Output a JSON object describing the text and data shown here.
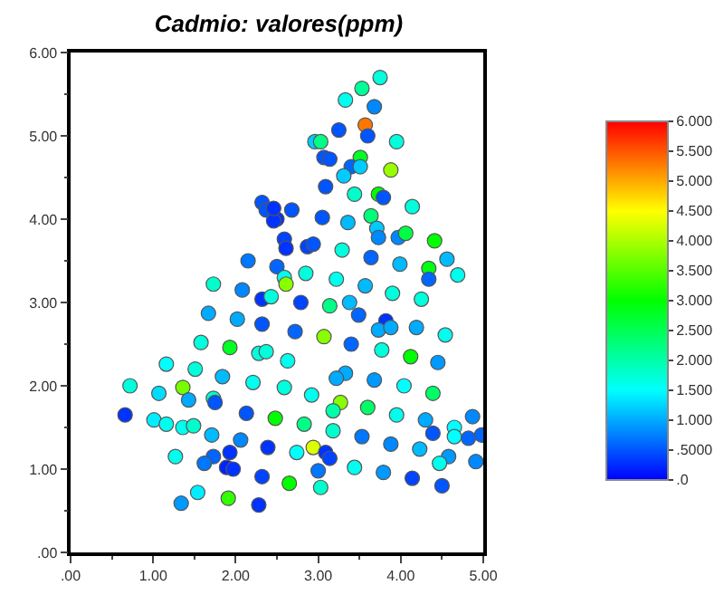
{
  "chart_data": {
    "type": "scatter",
    "title": "Cadmio: valores(ppm)",
    "marker": "circle",
    "legend": false,
    "xlim": [
      0,
      5
    ],
    "ylim": [
      0,
      6
    ],
    "xticks": [
      {
        "value": 0,
        "label": ".00"
      },
      {
        "value": 1,
        "label": "1.00"
      },
      {
        "value": 2,
        "label": "2.00"
      },
      {
        "value": 3,
        "label": "3.00"
      },
      {
        "value": 4,
        "label": "4.00"
      },
      {
        "value": 5,
        "label": "5.00"
      }
    ],
    "yticks": [
      {
        "value": 0,
        "label": ".00"
      },
      {
        "value": 1,
        "label": "1.00"
      },
      {
        "value": 2,
        "label": "2.00"
      },
      {
        "value": 3,
        "label": "3.00"
      },
      {
        "value": 4,
        "label": "4.00"
      },
      {
        "value": 5,
        "label": "5.00"
      },
      {
        "value": 6,
        "label": "6.00"
      }
    ],
    "clim": [
      0,
      6
    ],
    "cticks": [
      {
        "value": 0,
        "label": ".0"
      },
      {
        "value": 0.5,
        "label": ".5000"
      },
      {
        "value": 1,
        "label": "1.000"
      },
      {
        "value": 1.5,
        "label": "1.500"
      },
      {
        "value": 2,
        "label": "2.000"
      },
      {
        "value": 2.5,
        "label": "2.500"
      },
      {
        "value": 3,
        "label": "3.000"
      },
      {
        "value": 3.5,
        "label": "3.500"
      },
      {
        "value": 4,
        "label": "4.000"
      },
      {
        "value": 4.5,
        "label": "4.500"
      },
      {
        "value": 5,
        "label": "5.000"
      },
      {
        "value": 5.5,
        "label": "5.500"
      },
      {
        "value": 6,
        "label": "6.000"
      }
    ],
    "x": [
      2.32,
      2.37,
      2.5,
      2.46,
      2.59,
      2.61,
      2.15,
      2.5,
      2.59,
      2.61,
      1.73,
      2.08,
      2.32,
      2.43,
      3.75,
      3.53,
      3.33,
      3.68,
      3.57,
      3.6,
      3.25,
      2.96,
      3.03,
      3.95,
      3.07,
      3.14,
      3.51,
      3.4,
      3.51,
      3.31,
      3.88,
      3.09,
      3.44,
      3.73,
      3.79,
      4.14,
      2.68,
      2.46,
      3.05,
      3.36,
      3.64,
      3.71,
      3.73,
      3.97,
      4.06,
      4.41,
      2.87,
      2.94,
      3.29,
      3.64,
      4.56,
      3.99,
      2.85,
      3.22,
      3.57,
      4.34,
      4.34,
      4.69,
      3.9,
      4.25,
      3.38,
      2.79,
      3.14,
      1.67,
      2.02,
      2.32,
      1.58,
      1.93,
      2.28,
      2.37,
      1.16,
      1.51,
      1.84,
      2.21,
      0.72,
      1.36,
      1.07,
      1.43,
      1.73,
      1.75,
      2.59,
      0.66,
      1.01,
      1.16,
      1.36,
      1.49,
      2.13,
      2.48,
      1.71,
      2.06,
      2.39,
      1.93,
      1.27,
      1.73,
      1.62,
      1.89,
      1.97,
      2.32,
      1.54,
      1.34,
      1.91,
      2.28,
      2.65,
      3.49,
      3.82,
      3.73,
      3.88,
      4.19,
      4.54,
      2.72,
      3.07,
      3.4,
      3.77,
      4.12,
      4.45,
      2.63,
      3.33,
      3.22,
      3.68,
      4.04,
      4.39,
      2.92,
      3.27,
      3.18,
      3.6,
      3.95,
      2.83,
      3.18,
      4.3,
      4.39,
      4.65,
      4.65,
      4.87,
      4.82,
      4.98,
      3.53,
      3.88,
      4.23,
      2.94,
      3.09,
      3.14,
      2.74,
      4.58,
      4.47,
      4.91,
      3.0,
      3.44,
      3.79,
      4.14,
      4.5,
      3.03
    ],
    "values": [
      4.2,
      4.11,
      4.0,
      3.98,
      3.76,
      3.65,
      3.5,
      3.43,
      3.3,
      3.22,
      3.22,
      3.15,
      3.04,
      3.07,
      5.7,
      5.57,
      5.43,
      5.35,
      5.13,
      5.0,
      5.07,
      4.93,
      4.93,
      4.93,
      4.74,
      4.72,
      4.74,
      4.63,
      4.63,
      4.52,
      4.59,
      4.39,
      4.3,
      4.3,
      4.26,
      4.15,
      4.11,
      4.13,
      4.02,
      3.96,
      4.04,
      3.89,
      3.78,
      3.78,
      3.83,
      3.74,
      3.67,
      3.7,
      3.63,
      3.54,
      3.52,
      3.46,
      3.35,
      3.28,
      3.2,
      3.41,
      3.28,
      3.33,
      3.11,
      3.04,
      3.0,
      3.0,
      2.96,
      2.87,
      2.8,
      2.74,
      2.52,
      2.46,
      2.39,
      2.41,
      2.26,
      2.2,
      2.11,
      2.04,
      2.0,
      1.98,
      1.91,
      1.83,
      1.85,
      1.8,
      1.98,
      1.65,
      1.59,
      1.54,
      1.5,
      1.52,
      1.67,
      1.61,
      1.41,
      1.35,
      1.26,
      1.2,
      1.15,
      1.15,
      1.07,
      1.02,
      1.0,
      0.91,
      0.72,
      0.59,
      0.65,
      0.57,
      0.83,
      2.85,
      2.78,
      2.67,
      2.7,
      2.7,
      2.61,
      2.65,
      2.59,
      2.5,
      2.43,
      2.35,
      2.28,
      2.3,
      2.15,
      2.09,
      2.07,
      2.0,
      1.91,
      1.89,
      1.8,
      1.7,
      1.74,
      1.65,
      1.54,
      1.46,
      1.59,
      1.43,
      1.5,
      1.39,
      1.63,
      1.37,
      1.41,
      1.39,
      1.3,
      1.24,
      1.26,
      1.2,
      1.13,
      1.2,
      1.15,
      1.07,
      1.09,
      0.98,
      1.02,
      0.96,
      0.89,
      0.8,
      0.78
    ],
    "cvalues": [
      0.5,
      0.5,
      0.3,
      0.3,
      0.4,
      0.3,
      0.7,
      0.6,
      1.6,
      3.8,
      1.8,
      0.8,
      0.3,
      1.7,
      1.7,
      2.1,
      1.6,
      0.8,
      5.3,
      0.5,
      0.5,
      1.2,
      2.2,
      1.7,
      0.5,
      0.5,
      2.8,
      0.6,
      1.2,
      1.2,
      3.9,
      0.5,
      1.8,
      3.0,
      0.5,
      1.7,
      0.5,
      0.3,
      0.5,
      1.1,
      2.3,
      1.2,
      0.8,
      0.8,
      2.6,
      3.0,
      0.4,
      0.5,
      1.7,
      0.6,
      1.1,
      1.1,
      1.7,
      1.6,
      1.1,
      2.9,
      0.6,
      1.6,
      1.7,
      1.7,
      1.1,
      0.4,
      2.2,
      1.0,
      1.0,
      0.5,
      1.7,
      2.8,
      1.7,
      1.7,
      1.5,
      1.7,
      1.1,
      1.6,
      1.7,
      3.7,
      1.3,
      1.0,
      1.8,
      0.5,
      1.7,
      0.3,
      1.4,
      1.6,
      1.6,
      1.8,
      0.5,
      3.0,
      1.1,
      0.8,
      0.3,
      0.3,
      1.6,
      0.6,
      0.7,
      0.2,
      0.3,
      0.4,
      1.4,
      0.9,
      3.3,
      0.3,
      3.0,
      0.6,
      0.3,
      1.0,
      1.0,
      1.0,
      1.6,
      0.6,
      3.8,
      0.6,
      1.7,
      3.0,
      0.9,
      1.6,
      1.0,
      1.0,
      0.9,
      1.5,
      2.4,
      1.6,
      3.8,
      2.0,
      2.4,
      1.6,
      2.2,
      1.8,
      1.0,
      0.5,
      1.5,
      1.5,
      0.8,
      0.6,
      0.6,
      0.7,
      0.8,
      1.1,
      4.3,
      0.3,
      0.4,
      1.5,
      0.9,
      1.6,
      0.8,
      0.7,
      1.6,
      0.9,
      0.4,
      0.5,
      1.8
    ]
  }
}
